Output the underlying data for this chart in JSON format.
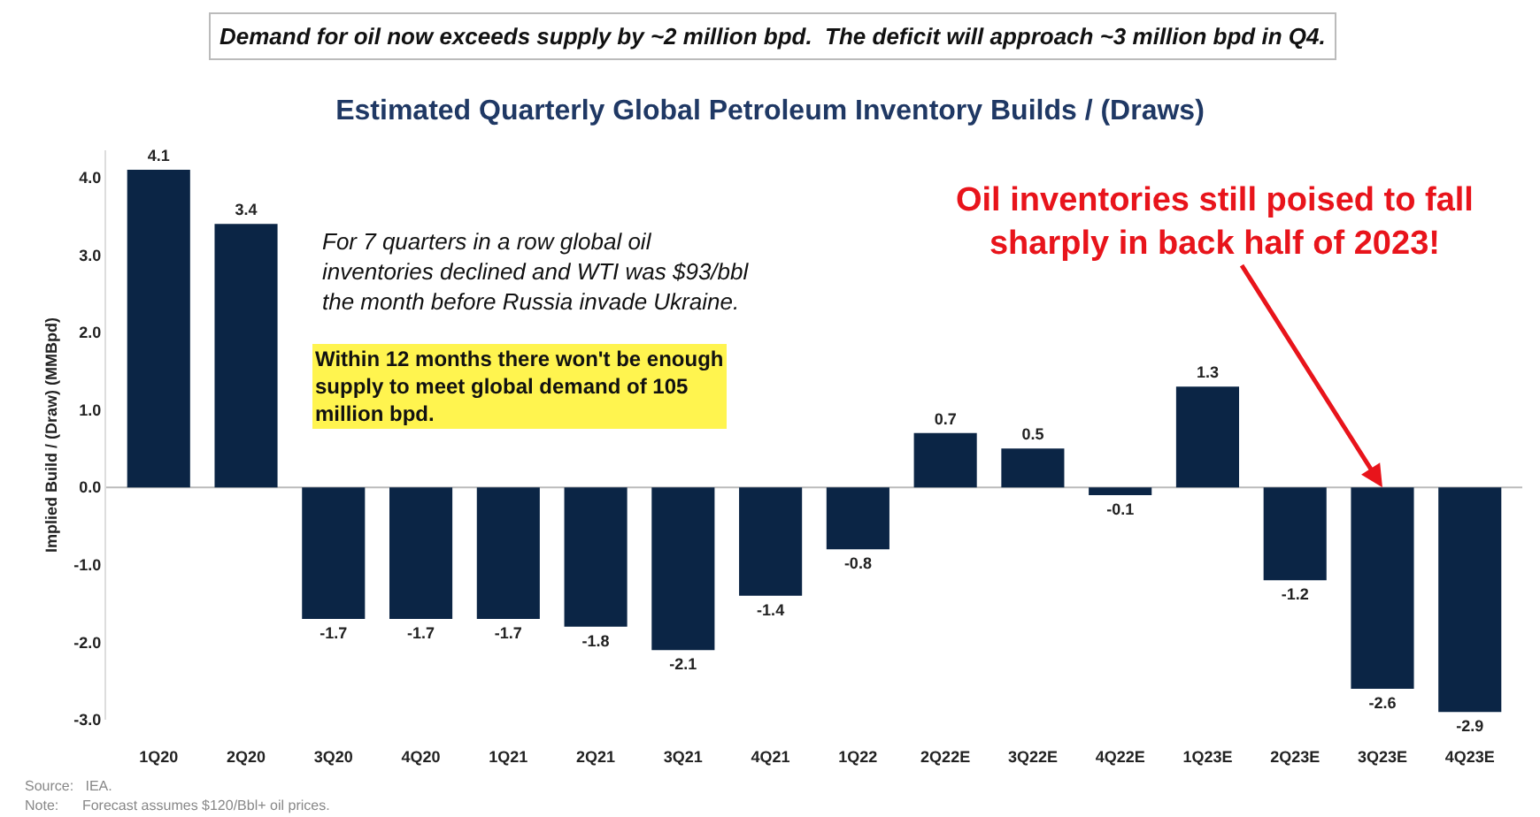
{
  "chart_data": {
    "type": "bar",
    "title": "Estimated Quarterly Global Petroleum Inventory Builds / (Draws)",
    "subtitle": "Demand for oil now exceeds supply by ~2 million bpd.  The deficit will approach ~3 million bpd in Q4.",
    "ylabel": "Implied Build / (Draw) (MMBpd)",
    "categories": [
      "1Q20",
      "2Q20",
      "3Q20",
      "4Q20",
      "1Q21",
      "2Q21",
      "3Q21",
      "4Q21",
      "1Q22",
      "2Q22E",
      "3Q22E",
      "4Q22E",
      "1Q23E",
      "2Q23E",
      "3Q23E",
      "4Q23E"
    ],
    "values": [
      4.1,
      3.4,
      -1.7,
      -1.7,
      -1.7,
      -1.8,
      -2.1,
      -1.4,
      -0.8,
      0.7,
      0.5,
      -0.1,
      1.3,
      -1.2,
      -2.6,
      -2.9
    ],
    "color": "#0b2545",
    "data_labels": true,
    "grid": false,
    "legend": false,
    "ylim": [
      -3.0,
      4.35
    ],
    "ref_lines": [
      {
        "axis": "y",
        "value": 0,
        "color": "#bbbbbb"
      }
    ],
    "yticks": [
      {
        "value": -3,
        "label": "-3.0"
      },
      {
        "value": -2,
        "label": "-2.0"
      },
      {
        "value": -1,
        "label": "-1.0"
      },
      {
        "value": 0,
        "label": "0.0"
      },
      {
        "value": 1,
        "label": "1.0"
      },
      {
        "value": 2,
        "label": "2.0"
      },
      {
        "value": 3,
        "label": "3.0"
      },
      {
        "value": 4,
        "label": "4.0"
      }
    ],
    "annotations": [
      "For 7 quarters in a row global oil\ninventories declined and WTI was $93/bbl\nthe month before Russia invade Ukraine.",
      "Within 12 months there won't be enough\nsupply to meet global demand of 105\nmillion bpd.",
      {
        "text": "Oil inventories still poised to fall\nsharply in back half of 2023!",
        "x": "3Q23E",
        "y": 0
      },
      "Source:   IEA.",
      "Note:      Forecast assumes $120/Bbl+ oil prices."
    ]
  }
}
